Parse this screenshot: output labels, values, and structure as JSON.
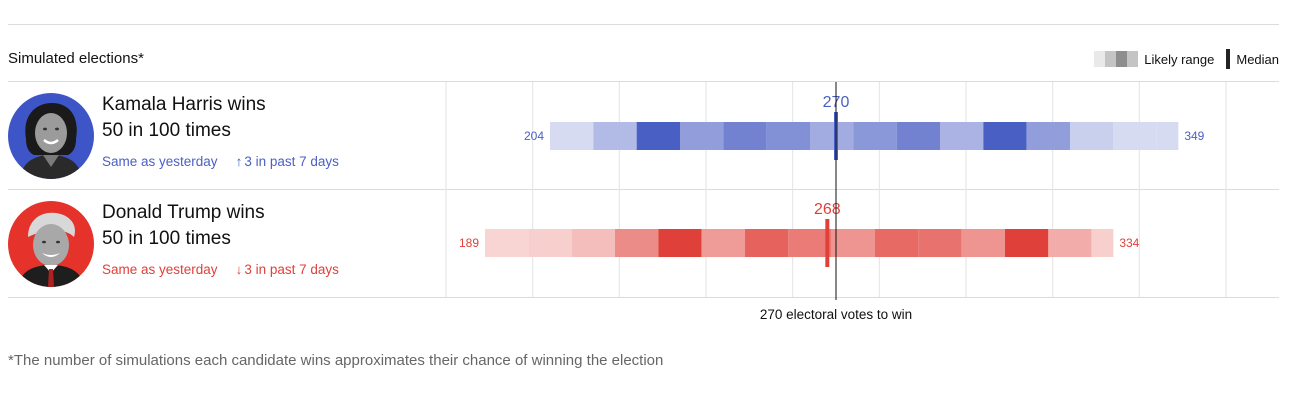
{
  "section_title": "Simulated elections*",
  "legend": {
    "range_label": "Likely range",
    "median_label": "Median",
    "range_colors": [
      "#e9e9e9",
      "#c4c4c4",
      "#8e8e8e",
      "#c4c4c4"
    ]
  },
  "candidates": [
    {
      "key": "harris",
      "name": "Kamala Harris wins",
      "odds": "50 in 100 times",
      "change_1": "Same as yesterday",
      "change_2_arrow": "↑",
      "change_2": "3 in past 7 days",
      "color": "#4a5fc4",
      "avatar_bg": "#3d55c6"
    },
    {
      "key": "trump",
      "name": "Donald Trump wins",
      "odds": "50 in 100 times",
      "change_1": "Same as yesterday",
      "change_2_arrow": "↓",
      "change_2": "3 in past 7 days",
      "color": "#e0403a",
      "avatar_bg": "#e5322b"
    }
  ],
  "chart_data": {
    "type": "heatmap",
    "title": "",
    "xlabel": "270 electoral votes to win",
    "xlim": [
      180,
      360
    ],
    "threshold": 270,
    "gridline_step": 20,
    "series": [
      {
        "name": "Kamala Harris",
        "color": "#4a5fc4",
        "min": 204,
        "max": 349,
        "median": 270,
        "bins": [
          {
            "from": 204,
            "to": 214,
            "level": 0.12
          },
          {
            "from": 214,
            "to": 224,
            "level": 0.35
          },
          {
            "from": 224,
            "to": 234,
            "level": 1.0
          },
          {
            "from": 234,
            "to": 244,
            "level": 0.55
          },
          {
            "from": 244,
            "to": 254,
            "level": 0.75
          },
          {
            "from": 254,
            "to": 264,
            "level": 0.65
          },
          {
            "from": 264,
            "to": 274,
            "level": 0.45
          },
          {
            "from": 274,
            "to": 284,
            "level": 0.6
          },
          {
            "from": 284,
            "to": 294,
            "level": 0.75
          },
          {
            "from": 294,
            "to": 304,
            "level": 0.4
          },
          {
            "from": 304,
            "to": 314,
            "level": 1.0
          },
          {
            "from": 314,
            "to": 324,
            "level": 0.55
          },
          {
            "from": 324,
            "to": 334,
            "level": 0.2
          },
          {
            "from": 334,
            "to": 344,
            "level": 0.12
          },
          {
            "from": 344,
            "to": 349,
            "level": 0.12
          }
        ]
      },
      {
        "name": "Donald Trump",
        "color": "#e0403a",
        "min": 189,
        "max": 334,
        "median": 268,
        "bins": [
          {
            "from": 189,
            "to": 199,
            "level": 0.12
          },
          {
            "from": 199,
            "to": 209,
            "level": 0.15
          },
          {
            "from": 209,
            "to": 219,
            "level": 0.25
          },
          {
            "from": 219,
            "to": 229,
            "level": 0.55
          },
          {
            "from": 229,
            "to": 239,
            "level": 1.0
          },
          {
            "from": 239,
            "to": 249,
            "level": 0.45
          },
          {
            "from": 249,
            "to": 259,
            "level": 0.8
          },
          {
            "from": 259,
            "to": 269,
            "level": 0.65
          },
          {
            "from": 269,
            "to": 279,
            "level": 0.5
          },
          {
            "from": 279,
            "to": 289,
            "level": 0.75
          },
          {
            "from": 289,
            "to": 299,
            "level": 0.7
          },
          {
            "from": 299,
            "to": 309,
            "level": 0.5
          },
          {
            "from": 309,
            "to": 319,
            "level": 1.0
          },
          {
            "from": 319,
            "to": 329,
            "level": 0.35
          },
          {
            "from": 329,
            "to": 334,
            "level": 0.15
          }
        ]
      }
    ]
  },
  "footnote": "*The number of simulations each candidate wins approximates their chance of winning the election"
}
